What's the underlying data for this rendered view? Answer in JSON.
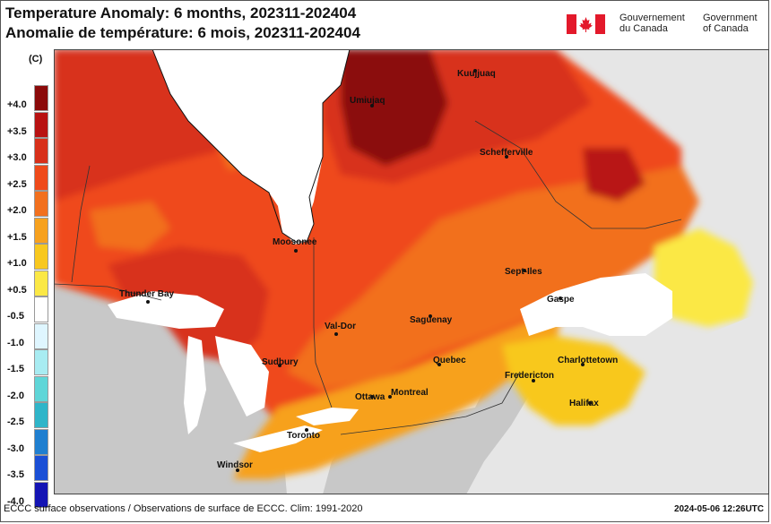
{
  "header": {
    "title_en": "Temperature Anomaly: 6 months, 202311-202404",
    "title_fr": "Anomalie de température: 6 mois, 202311-202404",
    "gov_fr_line1": "Gouvernement",
    "gov_fr_line2": "du Canada",
    "gov_en_line1": "Government",
    "gov_en_line2": "of Canada",
    "flag_icon": "canada-flag-icon"
  },
  "legend": {
    "unit": "(C)",
    "ticks": [
      "+4.0",
      "+3.5",
      "+3.0",
      "+2.5",
      "+2.0",
      "+1.5",
      "+1.0",
      "+0.5",
      "-0.5",
      "-1.0",
      "-1.5",
      "-2.0",
      "-2.5",
      "-3.0",
      "-3.5",
      "-4.0"
    ],
    "colors": [
      "#8b0a0a",
      "#b81212",
      "#d8301a",
      "#ef4a1a",
      "#f2701e",
      "#f7a11e",
      "#f8c81e",
      "#fbe845",
      "#ffffff",
      "#dff6ff",
      "#a8ecf2",
      "#5fd6d8",
      "#2fb5c9",
      "#1f7fd0",
      "#1a4fd6",
      "#1414b4"
    ]
  },
  "map": {
    "cities": [
      {
        "name": "Kuujjuaq"
      },
      {
        "name": "Umiujaq"
      },
      {
        "name": "Schefferville"
      },
      {
        "name": "Moosonee"
      },
      {
        "name": "Thunder Bay"
      },
      {
        "name": "Sept-Iles"
      },
      {
        "name": "Gaspe"
      },
      {
        "name": "Val-Dor"
      },
      {
        "name": "Saguenay"
      },
      {
        "name": "Sudbury"
      },
      {
        "name": "Quebec"
      },
      {
        "name": "Charlottetown"
      },
      {
        "name": "Fredericton"
      },
      {
        "name": "Ottawa"
      },
      {
        "name": "Montreal"
      },
      {
        "name": "Halifax"
      },
      {
        "name": "Toronto"
      },
      {
        "name": "Windsor"
      }
    ]
  },
  "footer": {
    "source": "ECCC surface observations / Observations de surface de ECCC. Clim: 1991-2020",
    "timestamp": "2024-05-06 12:26UTC"
  }
}
